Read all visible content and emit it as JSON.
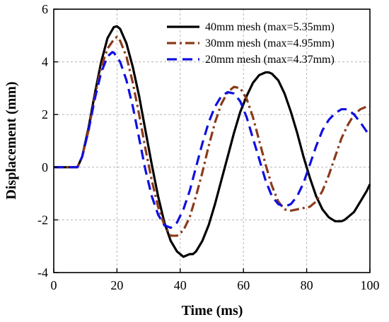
{
  "chart_data": {
    "type": "line",
    "xlabel": "Time (ms)",
    "ylabel": "Displacement (mm)",
    "xlim": [
      0,
      100
    ],
    "ylim": [
      -4,
      6
    ],
    "xticks": [
      0,
      20,
      40,
      60,
      80,
      100
    ],
    "yticks": [
      -4,
      -2,
      0,
      2,
      4,
      6
    ],
    "grid": true,
    "legend_position": "top-right",
    "series": [
      {
        "name": "40mm mesh (max=5.35mm)",
        "color": "#000000",
        "style": "solid",
        "x": [
          0,
          7.5,
          9,
          11,
          13,
          15,
          17,
          19,
          20,
          21,
          23,
          25,
          27,
          29,
          31,
          33,
          35,
          37,
          39,
          41,
          43,
          44,
          45,
          47,
          49,
          51,
          53,
          55,
          57,
          59,
          61,
          63,
          65,
          67,
          68,
          69,
          71,
          73,
          75,
          77,
          79,
          81,
          83,
          85,
          87,
          89,
          91,
          92,
          93,
          95,
          97,
          99,
          100
        ],
        "y": [
          0,
          0,
          0.4,
          1.5,
          2.8,
          4.0,
          4.9,
          5.32,
          5.35,
          5.25,
          4.7,
          3.8,
          2.7,
          1.4,
          0.1,
          -1.1,
          -2.1,
          -2.8,
          -3.2,
          -3.4,
          -3.3,
          -3.3,
          -3.2,
          -2.8,
          -2.2,
          -1.4,
          -0.5,
          0.4,
          1.3,
          2.1,
          2.7,
          3.2,
          3.5,
          3.6,
          3.6,
          3.55,
          3.3,
          2.8,
          2.1,
          1.3,
          0.4,
          -0.4,
          -1.1,
          -1.6,
          -1.9,
          -2.05,
          -2.05,
          -2.0,
          -1.9,
          -1.7,
          -1.3,
          -0.9,
          -0.65
        ]
      },
      {
        "name": "30mm mesh (max=4.95mm)",
        "color": "#8B3A1A",
        "style": "dashdot",
        "x": [
          0,
          7.5,
          9,
          11,
          13,
          15,
          17,
          19,
          20,
          21,
          23,
          25,
          27,
          29,
          31,
          33,
          35,
          37,
          39,
          41,
          43,
          45,
          47,
          49,
          51,
          53,
          55,
          57,
          59,
          61,
          63,
          65,
          67,
          69,
          71,
          73,
          75,
          77,
          79,
          81,
          83,
          85,
          87,
          89,
          91,
          93,
          95,
          97,
          99,
          100
        ],
        "y": [
          0,
          0,
          0.4,
          1.4,
          2.7,
          3.8,
          4.5,
          4.85,
          4.95,
          4.8,
          4.2,
          3.2,
          2.0,
          0.7,
          -0.5,
          -1.5,
          -2.2,
          -2.6,
          -2.6,
          -2.4,
          -1.9,
          -1.1,
          -0.2,
          0.8,
          1.7,
          2.4,
          2.85,
          3.05,
          3.0,
          2.6,
          1.9,
          1.0,
          0.1,
          -0.7,
          -1.3,
          -1.6,
          -1.65,
          -1.6,
          -1.55,
          -1.5,
          -1.3,
          -0.9,
          -0.3,
          0.4,
          1.1,
          1.6,
          2.0,
          2.2,
          2.3,
          2.3
        ]
      },
      {
        "name": "20mm mesh (max=4.37mm)",
        "color": "#1010E0",
        "style": "dashed",
        "x": [
          0,
          7.5,
          9,
          11,
          13,
          15,
          17,
          18.5,
          19,
          21,
          23,
          25,
          27,
          29,
          31,
          33,
          35,
          37,
          39,
          41,
          43,
          45,
          47,
          49,
          51,
          53,
          55,
          57,
          59,
          61,
          63,
          65,
          67,
          69,
          71,
          73,
          75,
          77,
          79,
          81,
          83,
          85,
          87,
          89,
          91,
          93,
          95,
          97,
          99,
          100
        ],
        "y": [
          0,
          0,
          0.4,
          1.4,
          2.6,
          3.6,
          4.2,
          4.37,
          4.35,
          4.0,
          3.3,
          2.3,
          1.1,
          -0.1,
          -1.1,
          -1.8,
          -2.2,
          -2.3,
          -2.1,
          -1.6,
          -0.9,
          0.0,
          0.9,
          1.7,
          2.3,
          2.7,
          2.85,
          2.8,
          2.5,
          1.9,
          1.1,
          0.3,
          -0.5,
          -1.1,
          -1.4,
          -1.5,
          -1.4,
          -1.1,
          -0.6,
          0.1,
          0.8,
          1.4,
          1.8,
          2.05,
          2.2,
          2.2,
          2.0,
          1.7,
          1.35,
          1.2
        ]
      }
    ]
  }
}
